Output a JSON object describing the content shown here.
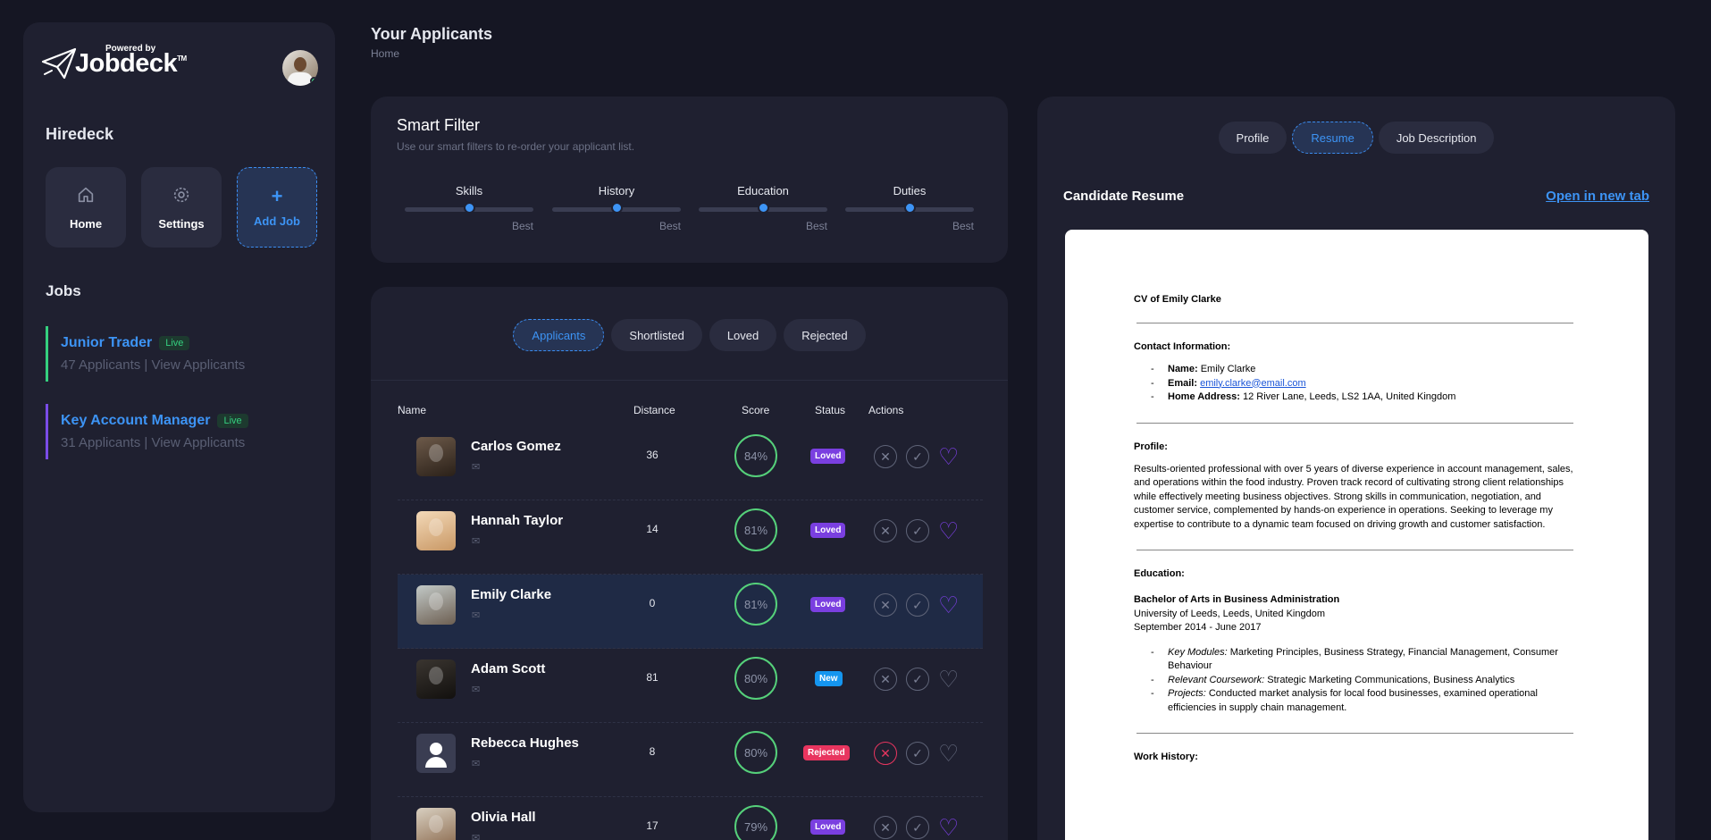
{
  "logo": {
    "powered_by": "Powered by",
    "brand": "Jobdeck",
    "tm": "TM"
  },
  "sidebar": {
    "org_name": "Hiredeck",
    "tiles": [
      {
        "label": "Home",
        "icon": "home-icon"
      },
      {
        "label": "Settings",
        "icon": "gear-icon"
      },
      {
        "label": "Add Job",
        "icon": "plus-icon"
      }
    ],
    "jobs_title": "Jobs",
    "jobs": [
      {
        "title": "Junior Trader",
        "status": "Live",
        "applicants": "47 Applicants",
        "sep": "|",
        "link": "View Applicants"
      },
      {
        "title": "Key Account Manager",
        "status": "Live",
        "applicants": "31 Applicants",
        "sep": "|",
        "link": "View Applicants"
      }
    ]
  },
  "header": {
    "title": "Your Applicants",
    "breadcrumb": "Home"
  },
  "smart_filter": {
    "title": "Smart Filter",
    "subtitle": "Use our smart filters to re-order your applicant list.",
    "sliders": [
      {
        "label": "Skills",
        "end_label": "Best",
        "value": 0.5
      },
      {
        "label": "History",
        "end_label": "Best",
        "value": 0.5
      },
      {
        "label": "Education",
        "end_label": "Best",
        "value": 0.5
      },
      {
        "label": "Duties",
        "end_label": "Best",
        "value": 0.5
      }
    ]
  },
  "applicants": {
    "tabs": [
      "Applicants",
      "Shortlisted",
      "Loved",
      "Rejected"
    ],
    "active_tab": "Applicants",
    "columns": {
      "name": "Name",
      "distance": "Distance",
      "score": "Score",
      "status": "Status",
      "actions": "Actions"
    },
    "rows": [
      {
        "name": "Carlos Gomez",
        "distance": "36",
        "score": "84%",
        "status": "Loved",
        "heart": true,
        "rejected": false
      },
      {
        "name": "Hannah Taylor",
        "distance": "14",
        "score": "81%",
        "status": "Loved",
        "heart": true,
        "rejected": false
      },
      {
        "name": "Emily Clarke",
        "distance": "0",
        "score": "81%",
        "status": "Loved",
        "heart": true,
        "rejected": false,
        "selected": true
      },
      {
        "name": "Adam Scott",
        "distance": "81",
        "score": "80%",
        "status": "New",
        "heart": false,
        "rejected": false
      },
      {
        "name": "Rebecca Hughes",
        "distance": "8",
        "score": "80%",
        "status": "Rejected",
        "heart": false,
        "rejected": true
      },
      {
        "name": "Olivia Hall",
        "distance": "17",
        "score": "79%",
        "status": "Loved",
        "heart": true,
        "rejected": false
      }
    ]
  },
  "detail": {
    "tabs": [
      "Profile",
      "Resume",
      "Job Description"
    ],
    "active_tab": "Resume",
    "title": "Candidate Resume",
    "open_link": "Open in new tab"
  },
  "resume": {
    "heading": "CV of Emily Clarke",
    "contact_heading": "Contact Information:",
    "name_label": "Name:",
    "name": "Emily Clarke",
    "email_label": "Email:",
    "email": "emily.clarke@email.com",
    "address_label": "Home Address:",
    "address": "12 River Lane, Leeds, LS2 1AA, United Kingdom",
    "profile_heading": "Profile:",
    "profile_text": "Results-oriented professional with over 5 years of diverse experience in account management, sales, and operations within the food industry. Proven track record of cultivating strong client relationships while effectively meeting business objectives. Strong skills in communication, negotiation, and customer service, complemented by hands-on experience in operations. Seeking to leverage my expertise to contribute to a dynamic team focused on driving growth and customer satisfaction.",
    "education_heading": "Education:",
    "degree": "Bachelor of Arts in Business Administration",
    "university": "University of Leeds, Leeds, United Kingdom",
    "dates": "September 2014 - June 2017",
    "modules_label": "Key Modules:",
    "modules": "Marketing Principles, Business Strategy, Financial Management, Consumer Behaviour",
    "coursework_label": "Relevant Coursework:",
    "coursework": "Strategic Marketing Communications, Business Analytics",
    "projects_label": "Projects:",
    "projects": "Conducted market analysis for local food businesses, examined operational efficiencies in supply chain management.",
    "work_heading": "Work History:"
  },
  "colors": {
    "accent": "#3d94f5",
    "loved": "#7a3fe0",
    "new": "#1596f0",
    "rejected": "#e8355f",
    "live": "#35d07f"
  }
}
